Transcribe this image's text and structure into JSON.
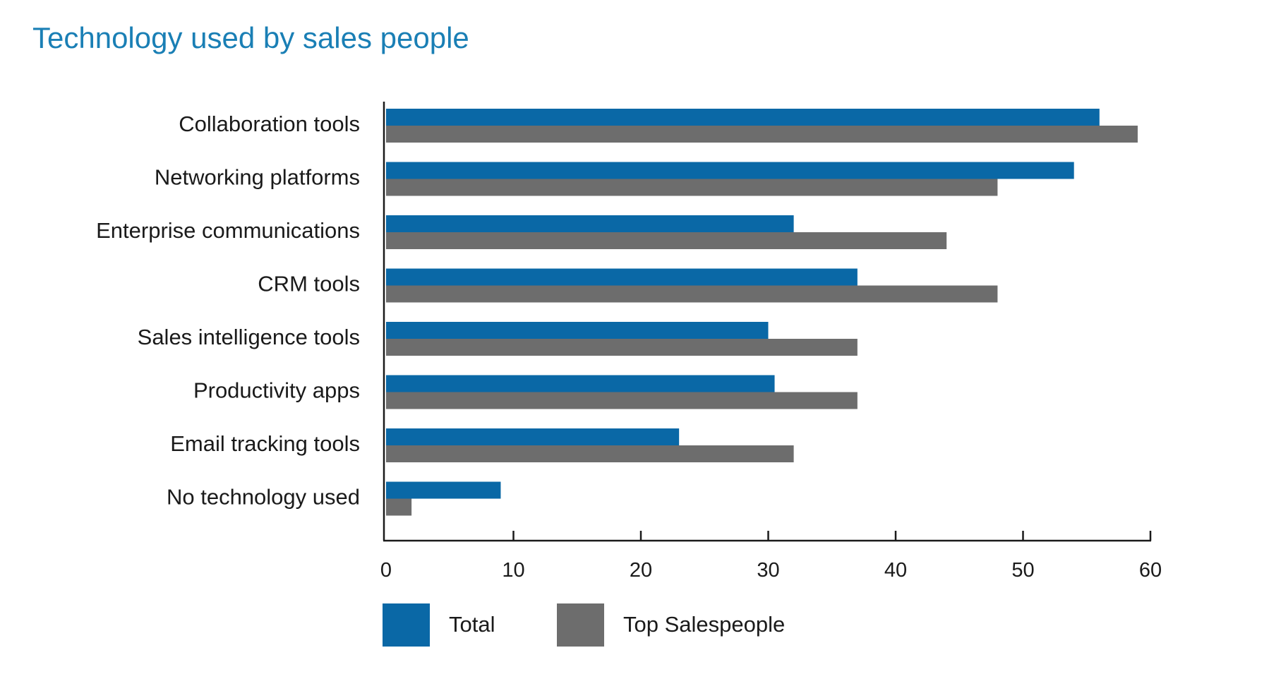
{
  "chart_data": {
    "type": "bar",
    "orientation": "horizontal",
    "title": "Technology used by sales people",
    "categories": [
      "Collaboration tools",
      "Networking platforms",
      "Enterprise communications",
      "CRM tools",
      "Sales intelligence tools",
      "Productivity apps",
      "Email tracking tools",
      "No technology used"
    ],
    "series": [
      {
        "name": "Total",
        "color": "#0a68a6",
        "values": [
          56,
          54,
          32,
          37,
          30,
          30.5,
          23,
          9
        ]
      },
      {
        "name": "Top Salespeople",
        "color": "#6d6d6d",
        "values": [
          59,
          48,
          44,
          48,
          37,
          37,
          32,
          2
        ]
      }
    ],
    "xlim": [
      0,
      60
    ],
    "xticks": [
      0,
      10,
      20,
      30,
      40,
      50,
      60
    ],
    "grid": false,
    "legend_position": "bottom-left"
  }
}
